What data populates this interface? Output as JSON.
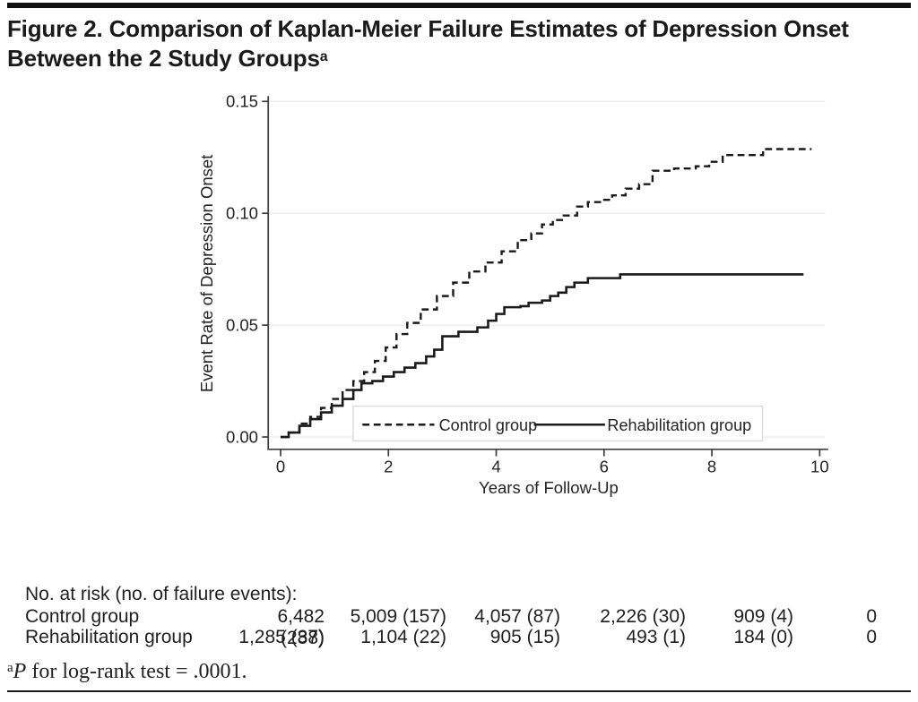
{
  "figure": {
    "title_line1": "Figure 2. Comparison of Kaplan-Meier Failure Estimates of Depression Onset",
    "title_line2": "Between the 2 Study Groups",
    "title_superscript": "a"
  },
  "chart_data": {
    "type": "line",
    "subtype": "kaplan-meier-failure-step",
    "title": "",
    "xlabel": "Years of Follow-Up",
    "ylabel": "Event Rate of Depression Onset",
    "xlim": [
      0,
      10
    ],
    "ylim": [
      0,
      0.15
    ],
    "x_ticks": [
      0,
      2,
      4,
      6,
      8,
      10
    ],
    "y_tick_values": [
      0,
      0.05,
      0.1,
      0.15
    ],
    "y_tick_labels": [
      "0.00",
      "0.05",
      "0.10",
      "0.15"
    ],
    "grid": "horizontal very light gray at each y tick",
    "legend_position": "inside plot, bottom center",
    "series": [
      {
        "name": "Control group",
        "style": "dashed",
        "points": [
          [
            0,
            0
          ],
          [
            0.15,
            0.002
          ],
          [
            0.35,
            0.006
          ],
          [
            0.55,
            0.009
          ],
          [
            0.75,
            0.013
          ],
          [
            0.95,
            0.017
          ],
          [
            1.15,
            0.021
          ],
          [
            1.35,
            0.025
          ],
          [
            1.55,
            0.029
          ],
          [
            1.75,
            0.034
          ],
          [
            1.95,
            0.04
          ],
          [
            2.15,
            0.046
          ],
          [
            2.35,
            0.051
          ],
          [
            2.6,
            0.057
          ],
          [
            2.9,
            0.063
          ],
          [
            3.2,
            0.069
          ],
          [
            3.5,
            0.074
          ],
          [
            3.8,
            0.078
          ],
          [
            4.1,
            0.083
          ],
          [
            4.4,
            0.088
          ],
          [
            4.65,
            0.091
          ],
          [
            4.85,
            0.095
          ],
          [
            5.05,
            0.097
          ],
          [
            5.25,
            0.099
          ],
          [
            5.5,
            0.103
          ],
          [
            5.7,
            0.105
          ],
          [
            5.95,
            0.106
          ],
          [
            6.15,
            0.108
          ],
          [
            6.4,
            0.111
          ],
          [
            6.65,
            0.113
          ],
          [
            6.9,
            0.119
          ],
          [
            7.3,
            0.12
          ],
          [
            7.7,
            0.121
          ],
          [
            7.95,
            0.123
          ],
          [
            8.2,
            0.126
          ],
          [
            8.95,
            0.1287
          ],
          [
            9.85,
            0.1287
          ]
        ]
      },
      {
        "name": "Rehabilitation group",
        "style": "solid",
        "points": [
          [
            0,
            0
          ],
          [
            0.15,
            0.002
          ],
          [
            0.35,
            0.005
          ],
          [
            0.55,
            0.008
          ],
          [
            0.75,
            0.011
          ],
          [
            0.95,
            0.014
          ],
          [
            1.15,
            0.017
          ],
          [
            1.35,
            0.021
          ],
          [
            1.5,
            0.024
          ],
          [
            1.7,
            0.025
          ],
          [
            1.9,
            0.027
          ],
          [
            2.1,
            0.029
          ],
          [
            2.3,
            0.031
          ],
          [
            2.5,
            0.033
          ],
          [
            2.7,
            0.036
          ],
          [
            2.85,
            0.039
          ],
          [
            3.0,
            0.045
          ],
          [
            3.3,
            0.047
          ],
          [
            3.65,
            0.049
          ],
          [
            3.85,
            0.052
          ],
          [
            4.0,
            0.055
          ],
          [
            4.15,
            0.058
          ],
          [
            4.45,
            0.0585
          ],
          [
            4.6,
            0.06
          ],
          [
            4.85,
            0.061
          ],
          [
            5.0,
            0.063
          ],
          [
            5.15,
            0.0645
          ],
          [
            5.3,
            0.067
          ],
          [
            5.45,
            0.069
          ],
          [
            5.7,
            0.071
          ],
          [
            6.3,
            0.0727
          ],
          [
            9.7,
            0.0727
          ]
        ]
      }
    ]
  },
  "risk_table": {
    "header": "No. at risk (no. of failure events):",
    "rows": [
      {
        "label": "Control group",
        "values": [
          "6,482 (288)",
          "5,009 (157)",
          "4,057 (87)",
          "2,226 (30)",
          "909 (4)",
          "0"
        ]
      },
      {
        "label": "Rehabilitation group",
        "values": [
          "1,285 (37)",
          "1,104 (22)",
          "905 (15)",
          "493 (1)",
          "184 (0)",
          "0"
        ]
      }
    ]
  },
  "footnote": {
    "superscript": "a",
    "p_label": "P",
    "text": " for log-rank test = .0001."
  },
  "colors": {
    "curve": "#1a1a1a",
    "axis": "#3f3f3f",
    "grid": "#ececec",
    "legend_border": "#d9d9d9",
    "text": "#242424",
    "title_text": "#1b1b1b",
    "rule": "#1a1a1a"
  }
}
